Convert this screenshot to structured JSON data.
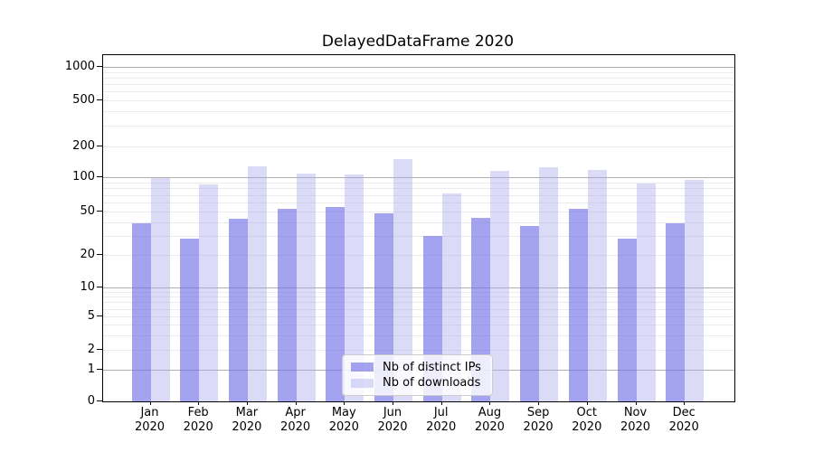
{
  "title": "DelayedDataFrame 2020",
  "chart_data": {
    "type": "bar",
    "title": "DelayedDataFrame 2020",
    "categories": [
      "Jan 2020",
      "Feb 2020",
      "Mar 2020",
      "Apr 2020",
      "May 2020",
      "Jun 2020",
      "Jul 2020",
      "Aug 2020",
      "Sep 2020",
      "Oct 2020",
      "Nov 2020",
      "Dec 2020"
    ],
    "x_tick_line1": [
      "Jan",
      "Feb",
      "Mar",
      "Apr",
      "May",
      "Jun",
      "Jul",
      "Aug",
      "Sep",
      "Oct",
      "Nov",
      "Dec"
    ],
    "x_tick_line2": [
      "2020",
      "2020",
      "2020",
      "2020",
      "2020",
      "2020",
      "2020",
      "2020",
      "2020",
      "2020",
      "2020",
      "2020"
    ],
    "series": [
      {
        "name": "Nb of distinct IPs",
        "color": "#a3a3f0",
        "fill": "rgba(113,113,232,0.65)",
        "values": [
          39,
          28,
          43,
          53,
          55,
          48,
          30,
          44,
          37,
          53,
          28,
          39
        ]
      },
      {
        "name": "Nb of downloads",
        "color": "#dbdbf8",
        "fill": "rgba(165,165,238,0.4)",
        "values": [
          99,
          87,
          127,
          109,
          107,
          150,
          72,
          115,
          125,
          118,
          88,
          94
        ]
      }
    ],
    "yscale": "symlog",
    "ytick_labels": [
      "0",
      "1",
      "2",
      "5",
      "10",
      "20",
      "50",
      "100",
      "200",
      "500",
      "1000"
    ],
    "yticks": [
      0,
      1,
      2,
      5,
      10,
      20,
      50,
      100,
      200,
      500,
      1000
    ],
    "ylim": [
      0,
      1277
    ],
    "xlabel": "",
    "ylabel": "",
    "grid": true,
    "major_grid_values": [
      1,
      10,
      100,
      1000
    ],
    "major_grid_color": "#b0b0b0",
    "minor_grid_color": "#ebebeb",
    "legend_position": "lower center"
  }
}
